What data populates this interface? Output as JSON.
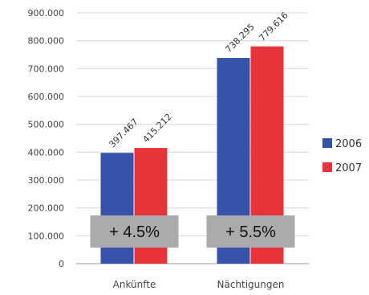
{
  "chart_data": {
    "type": "bar",
    "title": "",
    "xlabel": "",
    "ylabel": "",
    "categories": [
      "Ankünfte",
      "Nächtigungen"
    ],
    "series": [
      {
        "name": "2006",
        "color": "#3553a8",
        "values": [
          397467,
          738295
        ],
        "labels": [
          "397.467",
          "738.295"
        ]
      },
      {
        "name": "2007",
        "color": "#e8333a",
        "values": [
          415212,
          779616
        ],
        "labels": [
          "415.212",
          "779.616"
        ]
      }
    ],
    "ylim": [
      0,
      900000
    ],
    "yticks": [
      0,
      100000,
      200000,
      300000,
      400000,
      500000,
      600000,
      700000,
      800000,
      900000
    ],
    "ytick_labels": [
      "0",
      "100.000",
      "200.000",
      "300.000",
      "400.000",
      "500.000",
      "600.000",
      "700.000",
      "800.000",
      "900.000"
    ],
    "grid": true,
    "legend_position": "right",
    "annotations": [
      {
        "category": "Ankünfte",
        "text": "+ 4.5%"
      },
      {
        "category": "Nächtigungen",
        "text": "+ 5.5%"
      }
    ]
  }
}
